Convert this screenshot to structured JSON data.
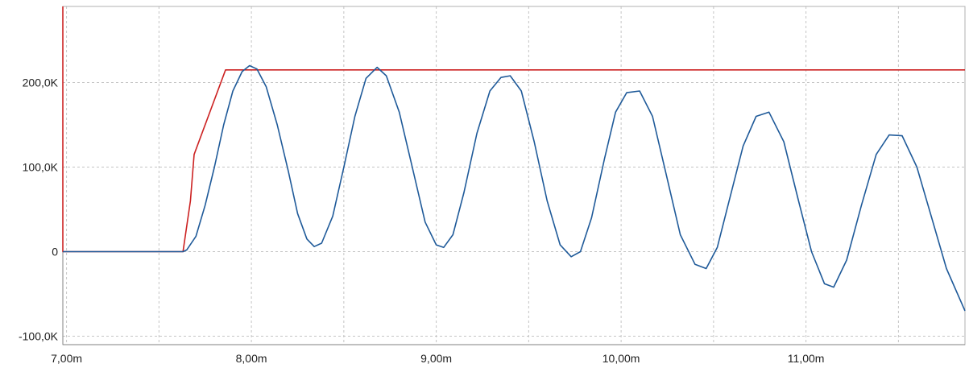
{
  "chart_data": {
    "type": "line",
    "title": "",
    "xlabel": "",
    "ylabel": "",
    "xlim": [
      6.98,
      11.86
    ],
    "ylim": [
      -110,
      290
    ],
    "grid": true,
    "x_ticks": [
      {
        "value": 7.0,
        "label": "7,00m"
      },
      {
        "value": 8.0,
        "label": "8,00m"
      },
      {
        "value": 9.0,
        "label": "9,00m"
      },
      {
        "value": 10.0,
        "label": "10,00m"
      },
      {
        "value": 11.0,
        "label": "11,00m"
      }
    ],
    "x_minor_grid": [
      7.5,
      8.5,
      9.5,
      10.5,
      11.5
    ],
    "y_ticks": [
      {
        "value": -100,
        "label": "-100,0K"
      },
      {
        "value": 0,
        "label": "0"
      },
      {
        "value": 100,
        "label": "100,0K"
      },
      {
        "value": 200,
        "label": "200,0K"
      }
    ],
    "series": [
      {
        "color": "#cc2222",
        "points": [
          [
            6.98,
            290
          ],
          [
            6.98,
            0
          ],
          [
            7.63,
            0
          ],
          [
            7.67,
            60
          ],
          [
            7.69,
            115
          ],
          [
            7.86,
            215
          ],
          [
            11.86,
            215
          ]
        ]
      },
      {
        "color": "#1f5a99",
        "points": [
          [
            6.98,
            0
          ],
          [
            7.63,
            0
          ],
          [
            7.65,
            2
          ],
          [
            7.7,
            18
          ],
          [
            7.75,
            55
          ],
          [
            7.8,
            100
          ],
          [
            7.85,
            150
          ],
          [
            7.9,
            190
          ],
          [
            7.95,
            213
          ],
          [
            7.99,
            220
          ],
          [
            8.03,
            216
          ],
          [
            8.08,
            195
          ],
          [
            8.14,
            150
          ],
          [
            8.2,
            95
          ],
          [
            8.25,
            45
          ],
          [
            8.3,
            15
          ],
          [
            8.34,
            6
          ],
          [
            8.38,
            10
          ],
          [
            8.44,
            42
          ],
          [
            8.5,
            100
          ],
          [
            8.56,
            160
          ],
          [
            8.62,
            205
          ],
          [
            8.68,
            218
          ],
          [
            8.73,
            208
          ],
          [
            8.8,
            165
          ],
          [
            8.87,
            100
          ],
          [
            8.94,
            35
          ],
          [
            9.0,
            8
          ],
          [
            9.04,
            5
          ],
          [
            9.09,
            20
          ],
          [
            9.15,
            70
          ],
          [
            9.22,
            140
          ],
          [
            9.29,
            190
          ],
          [
            9.35,
            206
          ],
          [
            9.4,
            208
          ],
          [
            9.46,
            190
          ],
          [
            9.53,
            130
          ],
          [
            9.6,
            60
          ],
          [
            9.67,
            8
          ],
          [
            9.73,
            -6
          ],
          [
            9.78,
            0
          ],
          [
            9.84,
            40
          ],
          [
            9.91,
            110
          ],
          [
            9.97,
            165
          ],
          [
            10.03,
            188
          ],
          [
            10.1,
            190
          ],
          [
            10.17,
            160
          ],
          [
            10.24,
            95
          ],
          [
            10.32,
            20
          ],
          [
            10.4,
            -15
          ],
          [
            10.46,
            -20
          ],
          [
            10.52,
            5
          ],
          [
            10.59,
            65
          ],
          [
            10.66,
            125
          ],
          [
            10.73,
            160
          ],
          [
            10.8,
            165
          ],
          [
            10.88,
            130
          ],
          [
            10.96,
            60
          ],
          [
            11.03,
            0
          ],
          [
            11.1,
            -38
          ],
          [
            11.15,
            -42
          ],
          [
            11.22,
            -10
          ],
          [
            11.3,
            55
          ],
          [
            11.38,
            115
          ],
          [
            11.45,
            138
          ],
          [
            11.52,
            137
          ],
          [
            11.6,
            100
          ],
          [
            11.68,
            40
          ],
          [
            11.76,
            -20
          ],
          [
            11.86,
            -70
          ]
        ]
      }
    ]
  },
  "colors": {
    "grid": "#c4c4c4",
    "axis": "#808080",
    "plot_border": "#b0b0b0"
  }
}
